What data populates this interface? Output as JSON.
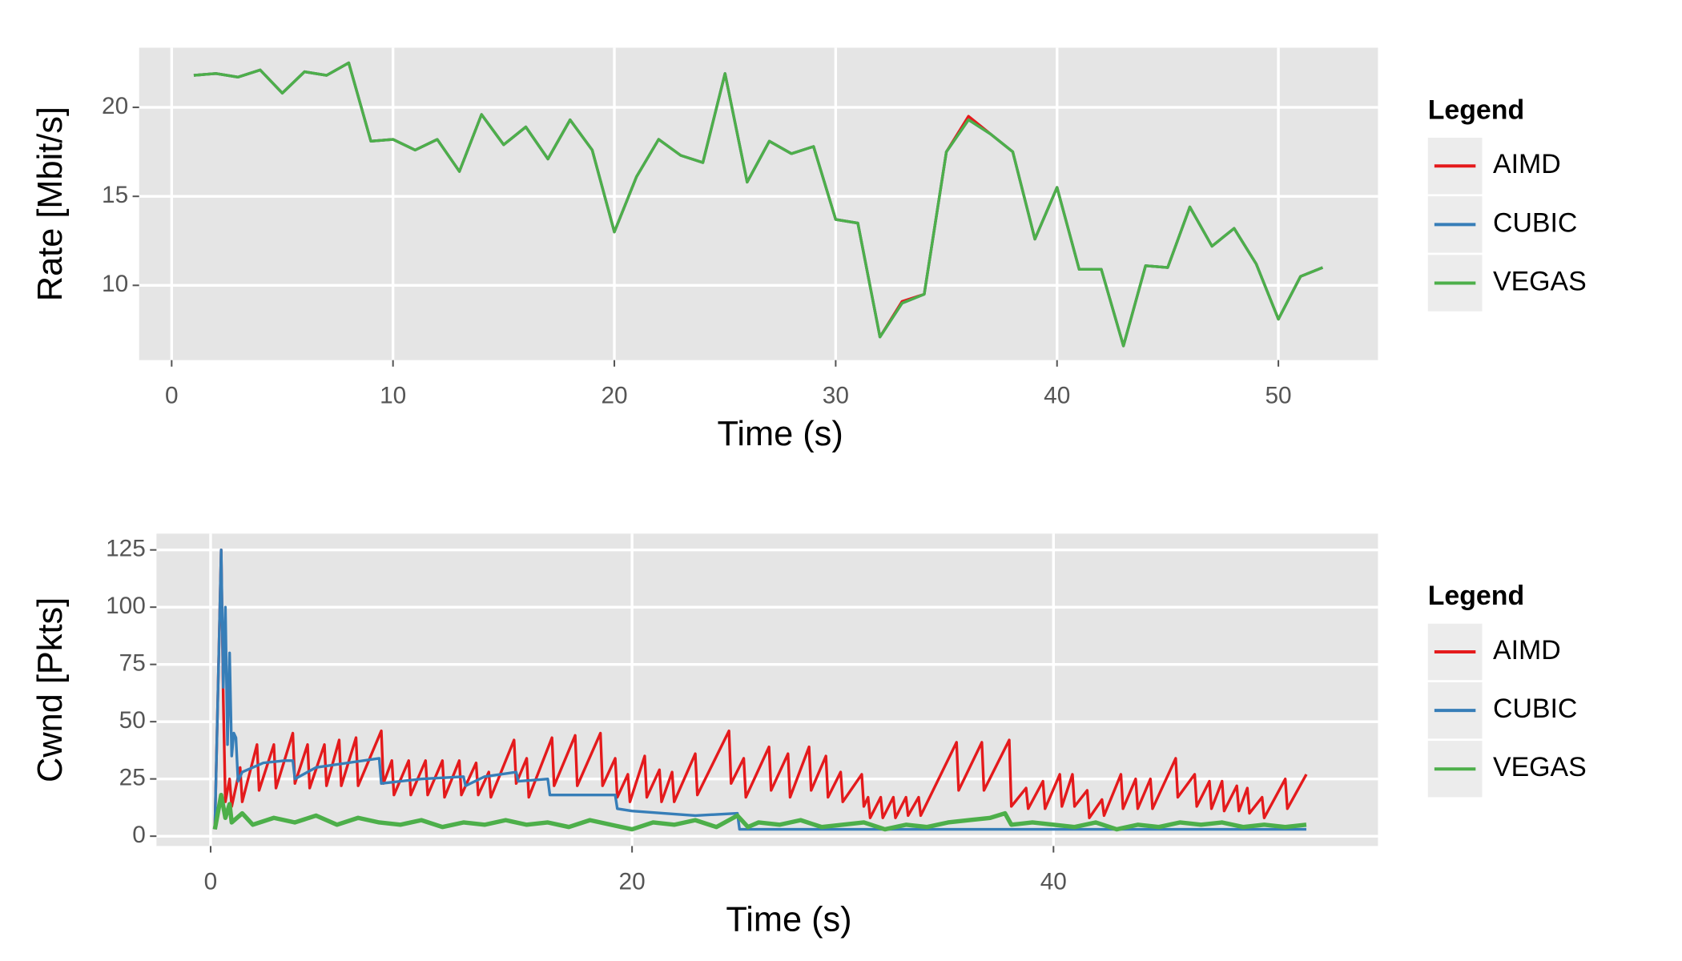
{
  "chart_data": [
    {
      "type": "line",
      "xlabel": "Time (s)",
      "ylabel": "Rate [Mbit/s]",
      "legend_title": "Legend",
      "xlim": [
        -1.47,
        54.5
      ],
      "ylim": [
        5.8,
        23.35
      ],
      "xticks": [
        0,
        10,
        20,
        30,
        40,
        50
      ],
      "yticks": [
        10,
        15,
        20
      ],
      "grid": true,
      "x": [
        1,
        2,
        3,
        4,
        5,
        6,
        7,
        8,
        9,
        10,
        11,
        12,
        13,
        14,
        15,
        16,
        17,
        18,
        19,
        20,
        21,
        22,
        23,
        24,
        25,
        26,
        27,
        28,
        29,
        30,
        31,
        32,
        33,
        34,
        35,
        36,
        37,
        38,
        39,
        40,
        41,
        42,
        43,
        44,
        45,
        46,
        47,
        48,
        49,
        50,
        51,
        52
      ],
      "series": [
        {
          "name": "AIMD",
          "color": "#e41a1c",
          "values": [
            21.8,
            21.9,
            21.7,
            22.1,
            20.8,
            22.0,
            21.8,
            22.5,
            18.1,
            18.2,
            17.6,
            18.2,
            16.4,
            19.6,
            17.9,
            18.9,
            17.1,
            19.3,
            17.6,
            13.0,
            16.1,
            18.2,
            17.3,
            16.9,
            21.9,
            15.8,
            18.1,
            17.4,
            17.8,
            13.7,
            13.5,
            7.1,
            9.1,
            9.5,
            17.5,
            19.5,
            18.5,
            17.5,
            12.6,
            15.5,
            10.9,
            10.9,
            6.6,
            11.1,
            11.0,
            14.4,
            12.2,
            13.2,
            11.2,
            8.1,
            10.5,
            11.0
          ]
        },
        {
          "name": "CUBIC",
          "color": "#377eb8",
          "values": [
            21.8,
            21.9,
            21.7,
            22.1,
            20.8,
            22.0,
            21.8,
            22.5,
            18.1,
            18.2,
            17.6,
            18.2,
            16.4,
            19.6,
            17.9,
            18.9,
            17.1,
            19.3,
            17.6,
            13.0,
            16.1,
            18.2,
            17.3,
            16.9,
            21.9,
            15.8,
            18.1,
            17.4,
            17.8,
            13.7,
            13.5,
            7.1,
            9.0,
            9.5,
            17.5,
            19.3,
            18.5,
            17.5,
            12.6,
            15.5,
            10.9,
            10.9,
            6.6,
            11.1,
            11.0,
            14.4,
            12.2,
            13.2,
            11.2,
            8.1,
            10.5,
            11.0
          ]
        },
        {
          "name": "VEGAS",
          "color": "#4daf4a",
          "values": [
            21.8,
            21.9,
            21.7,
            22.1,
            20.8,
            22.0,
            21.8,
            22.5,
            18.1,
            18.2,
            17.6,
            18.2,
            16.4,
            19.6,
            17.9,
            18.9,
            17.1,
            19.3,
            17.6,
            13.0,
            16.1,
            18.2,
            17.3,
            16.9,
            21.9,
            15.8,
            18.1,
            17.4,
            17.8,
            13.7,
            13.5,
            7.1,
            9.0,
            9.5,
            17.5,
            19.3,
            18.5,
            17.5,
            12.6,
            15.5,
            10.9,
            10.9,
            6.6,
            11.1,
            11.0,
            14.4,
            12.2,
            13.2,
            11.2,
            8.1,
            10.5,
            11.0
          ]
        }
      ]
    },
    {
      "type": "line",
      "xlabel": "Time (s)",
      "ylabel": "Cwnd [Pkts]",
      "legend_title": "Legend",
      "xlim": [
        -2.57,
        55.4
      ],
      "ylim": [
        -4.3,
        132.1
      ],
      "xticks": [
        0,
        20,
        40
      ],
      "yticks": [
        0,
        25,
        50,
        75,
        100,
        125
      ],
      "grid": true,
      "series": [
        {
          "name": "AIMD",
          "color": "#e41a1c",
          "x": [
            0.2,
            0.5,
            0.6,
            0.7,
            0.9,
            1.0,
            1.4,
            1.5,
            2.2,
            2.3,
            3.0,
            3.1,
            3.9,
            4.0,
            4.6,
            4.7,
            5.4,
            5.5,
            6.1,
            6.2,
            6.9,
            7.0,
            8.1,
            8.2,
            8.6,
            8.7,
            9.4,
            9.5,
            10.2,
            10.3,
            11.0,
            11.1,
            11.8,
            11.9,
            12.6,
            12.7,
            13.2,
            13.3,
            14.4,
            14.5,
            15.0,
            15.1,
            16.2,
            16.3,
            17.3,
            17.4,
            18.5,
            18.6,
            19.2,
            19.3,
            19.8,
            19.9,
            20.6,
            20.7,
            21.3,
            21.4,
            21.9,
            22.0,
            23.0,
            23.1,
            24.6,
            24.7,
            25.3,
            25.4,
            26.5,
            26.6,
            27.4,
            27.5,
            28.4,
            28.5,
            29.2,
            29.3,
            29.9,
            30.0,
            30.9,
            31.0,
            31.2,
            31.3,
            31.8,
            31.9,
            32.4,
            32.5,
            33.0,
            33.1,
            33.6,
            33.7,
            35.4,
            35.5,
            36.6,
            36.7,
            37.9,
            38.0,
            38.7,
            38.8,
            39.5,
            39.6,
            40.3,
            40.4,
            40.9,
            41.0,
            41.6,
            41.7,
            42.3,
            42.4,
            43.2,
            43.3,
            43.9,
            44.0,
            44.6,
            44.7,
            45.8,
            45.9,
            46.7,
            46.8,
            47.4,
            47.5,
            48.0,
            48.1,
            48.7,
            48.8,
            49.2,
            49.3,
            49.9,
            50.0,
            51.0,
            51.1,
            52.0
          ],
          "values": [
            3,
            125,
            60,
            15,
            25,
            13,
            30,
            15,
            40,
            20,
            40,
            21,
            45,
            23,
            40,
            21,
            40,
            22,
            42,
            22,
            43,
            22,
            46,
            23,
            33,
            18,
            33,
            18,
            33,
            18,
            33,
            17,
            33,
            18,
            32,
            18,
            28,
            17,
            42,
            23,
            34,
            17,
            43,
            22,
            44,
            22,
            45,
            22,
            34,
            17,
            27,
            15,
            35,
            17,
            29,
            15,
            28,
            15,
            36,
            18,
            46,
            23,
            34,
            17,
            39,
            20,
            36,
            17,
            39,
            20,
            35,
            17,
            28,
            15,
            27,
            13,
            17,
            8,
            17,
            8,
            17,
            8,
            17,
            9,
            17,
            9,
            41,
            20,
            41,
            20,
            42,
            13,
            21,
            12,
            24,
            12,
            27,
            13,
            27,
            13,
            20,
            8,
            16,
            9,
            27,
            12,
            25,
            12,
            25,
            12,
            34,
            17,
            27,
            13,
            24,
            12,
            24,
            11,
            22,
            11,
            21,
            10,
            17,
            8,
            25,
            12,
            27
          ]
        },
        {
          "name": "CUBIC",
          "color": "#377eb8",
          "x": [
            0.2,
            0.5,
            0.6,
            0.7,
            0.8,
            0.9,
            1.0,
            1.1,
            1.2,
            1.3,
            1.5,
            2.5,
            3.5,
            3.9,
            4.0,
            5.0,
            6.5,
            8.0,
            8.1,
            10,
            12,
            12.1,
            13,
            14.5,
            14.6,
            16.0,
            16.1,
            18,
            19.2,
            19.3,
            20,
            21.5,
            23,
            25,
            25.1,
            27,
            30,
            33,
            36,
            38,
            40,
            44,
            48,
            52
          ],
          "values": [
            3,
            125,
            65,
            100,
            40,
            80,
            35,
            45,
            43,
            24,
            28,
            32,
            33,
            33,
            25,
            30,
            32,
            34,
            23,
            25,
            26,
            22,
            26,
            28,
            24,
            25,
            18,
            18,
            18,
            12,
            11,
            10,
            9,
            10,
            3,
            3,
            3,
            3,
            3,
            3,
            3,
            3,
            3,
            3
          ]
        },
        {
          "name": "VEGAS",
          "color": "#4daf4a",
          "x": [
            0.2,
            0.5,
            0.7,
            0.9,
            1.0,
            1.5,
            2,
            3,
            4,
            5,
            6,
            7,
            8,
            9,
            10,
            11,
            12,
            13,
            14,
            15,
            16,
            17,
            18,
            19,
            20,
            21,
            22,
            23,
            24,
            25,
            25.5,
            26,
            27,
            28,
            29,
            30,
            31,
            32,
            33,
            34,
            35,
            36,
            37,
            37.7,
            38,
            39,
            40,
            41,
            42,
            43,
            44,
            45,
            46,
            47,
            48,
            49,
            50,
            51,
            52
          ],
          "values": [
            3,
            18,
            8,
            14,
            6,
            10,
            5,
            8,
            6,
            9,
            5,
            8,
            6,
            5,
            7,
            4,
            6,
            5,
            7,
            5,
            6,
            4,
            7,
            5,
            3,
            6,
            5,
            7,
            4,
            9,
            4,
            6,
            5,
            7,
            4,
            5,
            6,
            3,
            5,
            4,
            6,
            7,
            8,
            10,
            5,
            6,
            5,
            4,
            6,
            3,
            5,
            4,
            6,
            5,
            6,
            4,
            5,
            4,
            5
          ]
        }
      ]
    }
  ]
}
